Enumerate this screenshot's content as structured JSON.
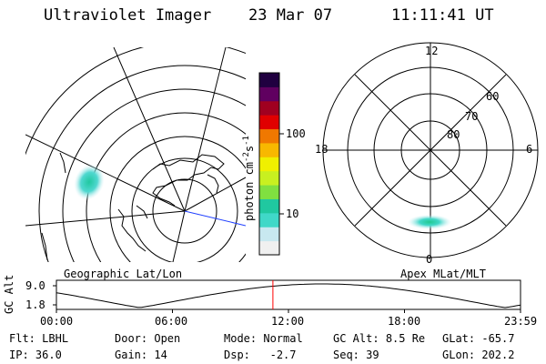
{
  "header": {
    "instrument": "Ultraviolet Imager",
    "date": "23 Mar 07",
    "time": "11:11:41 UT"
  },
  "left_panel": {
    "label": "Geographic Lat/Lon"
  },
  "right_panel": {
    "label": "Apex MLat/MLT",
    "mlt_labels": [
      "12",
      "18",
      "6",
      "0"
    ],
    "mlat_labels": [
      "60",
      "70",
      "80"
    ]
  },
  "colorbar": {
    "unit_label": "photon cm",
    "unit_exp1": "-2",
    "unit_mid": "s",
    "unit_exp2": "-1",
    "tick_labels": [
      "100",
      "10"
    ],
    "scale": "log",
    "colors": [
      "#f0f0f0",
      "#c8e8f0",
      "#40d8c8",
      "#20c8a0",
      "#80e040",
      "#c8f020",
      "#f0f000",
      "#f8b800",
      "#f07800",
      "#e00000",
      "#a00020",
      "#600060",
      "#200040"
    ]
  },
  "altitude_plot": {
    "ylabel": "GC Alt",
    "y_ticks": [
      "9.0",
      "1.8"
    ],
    "x_ticks": [
      "00:00",
      "06:00",
      "12:00",
      "18:00",
      "23:59"
    ],
    "current_marker_color": "#ff0000",
    "current_time_hours": 11.195
  },
  "info": {
    "flt_label": "Flt:",
    "flt_value": "LBHL",
    "ip_label": "IP:",
    "ip_value": "36.0",
    "door_label": "Door:",
    "door_value": "Open",
    "gain_label": "Gain:",
    "gain_value": "14",
    "mode_label": "Mode:",
    "mode_value": "Normal",
    "dsp_label": "Dsp:",
    "dsp_value": "-2.7",
    "gcalt_label": "GC Alt:",
    "gcalt_value": "8.5 Re",
    "seq_label": "Seq:",
    "seq_value": "39",
    "glat_label": "GLat:",
    "glat_value": "-65.7",
    "glon_label": "GLon:",
    "glon_value": "202.2"
  }
}
